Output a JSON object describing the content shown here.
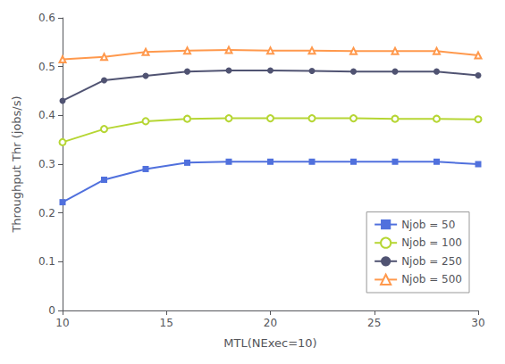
{
  "chart_data": {
    "type": "line",
    "xlabel": "MTL(NExec=10)",
    "ylabel": "Throughput Thr (jobs/s)",
    "x": [
      10,
      12,
      14,
      16,
      18,
      20,
      22,
      24,
      26,
      28,
      30
    ],
    "series": [
      {
        "name": "Njob = 50",
        "marker": "square",
        "values": [
          0.222,
          0.268,
          0.29,
          0.303,
          0.305,
          0.305,
          0.305,
          0.305,
          0.305,
          0.305,
          0.3
        ]
      },
      {
        "name": "Njob = 100",
        "marker": "open_circle",
        "values": [
          0.345,
          0.372,
          0.388,
          0.393,
          0.394,
          0.394,
          0.394,
          0.394,
          0.393,
          0.393,
          0.392
        ]
      },
      {
        "name": "Njob = 250",
        "marker": "circle",
        "values": [
          0.43,
          0.472,
          0.481,
          0.49,
          0.492,
          0.492,
          0.491,
          0.49,
          0.49,
          0.49,
          0.482
        ]
      },
      {
        "name": "Njob = 500",
        "marker": "open_triangle",
        "values": [
          0.515,
          0.52,
          0.53,
          0.533,
          0.534,
          0.533,
          0.533,
          0.532,
          0.532,
          0.532,
          0.523
        ]
      }
    ],
    "xlim": [
      10,
      30
    ],
    "ylim": [
      0,
      0.6
    ],
    "xticks": [
      10,
      15,
      20,
      25,
      30
    ],
    "yticks": [
      0,
      0.1,
      0.2,
      0.3,
      0.4,
      0.5,
      0.6
    ],
    "grid": false,
    "legend": "lower right"
  }
}
